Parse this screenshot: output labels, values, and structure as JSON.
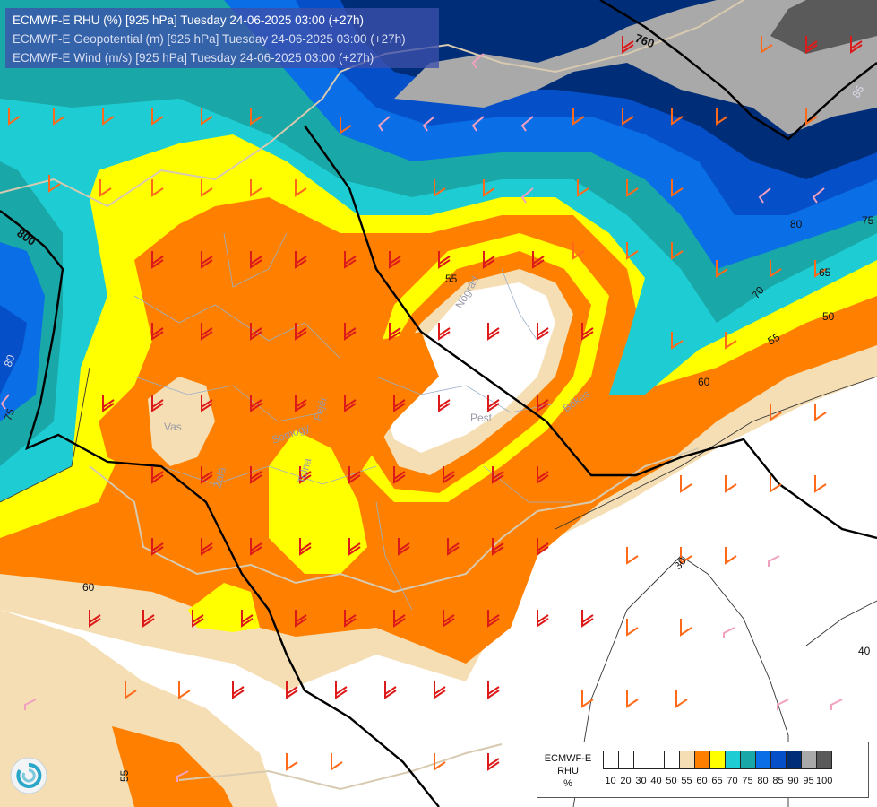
{
  "title": {
    "line1": "ECMWF-E RHU (%) [925 hPa] Tuesday 24-06-2025 03:00 (+27h)",
    "line2": "ECMWF-E Geopotential (m) [925 hPa] Tuesday 24-06-2025 03:00 (+27h)",
    "line3": "ECMWF-E Wind (m/s) [925 hPa] Tuesday 24-06-2025 03:00 (+27h)"
  },
  "legend": {
    "label_line1": "ECMWF-E",
    "label_line2": "RHU",
    "label_line3": "%",
    "colors": [
      "#ffffff",
      "#ffffff",
      "#ffffff",
      "#ffffff",
      "#ffffff",
      "#f5deb3",
      "#ff8000",
      "#ffff00",
      "#1ecdd3",
      "#1aa7a7",
      "#0a6ee6",
      "#0550c8",
      "#002d78",
      "#a9a9a9",
      "#5a5a5a"
    ],
    "ticks": [
      "10",
      "20",
      "30",
      "40",
      "50",
      "55",
      "60",
      "65",
      "70",
      "75",
      "80",
      "85",
      "90",
      "95",
      "100"
    ]
  },
  "map_labels": {
    "geop_760": "760",
    "geop_800": "800",
    "rh_80": "80",
    "rh_75": "75",
    "rh_70": "70",
    "rh_65": "65",
    "rh_60_east": "60",
    "rh_60_west": "60",
    "rh_55_north": "55",
    "rh_55_east": "55",
    "rh_55_sw": "55",
    "rh_50": "50",
    "rh_40": "40",
    "rh_30": "30",
    "rh_85": "85",
    "rh_80_west": "80",
    "rh_75_west": "75",
    "region_pest": "Pest",
    "region_vas": "Vas",
    "region_zala": "Zala",
    "region_bekes": "Békés",
    "region_somogy": "Somogy",
    "region_tolna": "Tolna",
    "region_fejer": "Fejér",
    "region_nograd": "Nógrád"
  }
}
